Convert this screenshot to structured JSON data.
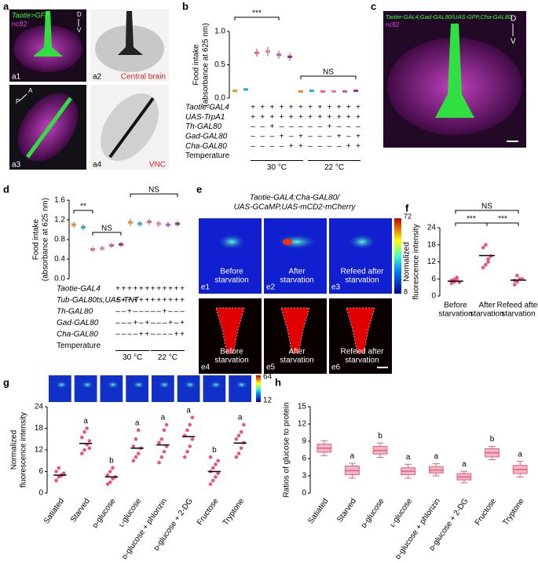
{
  "panel_a": {
    "label": "a",
    "a1": {
      "id": "a1",
      "genotype": "Taotie>GFP",
      "stain": "nc82",
      "dv": [
        "D",
        "V"
      ]
    },
    "a2": {
      "id": "a2",
      "caption": "Central brain"
    },
    "a3": {
      "id": "a3",
      "ap": [
        "A",
        "P"
      ]
    },
    "a4": {
      "id": "a4",
      "caption": "VNC"
    }
  },
  "panel_c": {
    "label": "c",
    "genotype": "Taotie-GAL4;Gad-GAL80/UAS-GFP,Cha-GAL80",
    "stain": "nc82",
    "dv": [
      "D",
      "V"
    ]
  },
  "panel_e": {
    "label": "e",
    "title": [
      "Taotie-GAL4;Cha-GAL80/",
      "UAS-GCaMP,UAS-mCD2-mCherry"
    ],
    "colorbar": [
      72,
      8
    ],
    "images": [
      {
        "id": "e1",
        "caption": [
          "Before",
          "starvation"
        ]
      },
      {
        "id": "e2",
        "caption": [
          "After",
          "starvation"
        ]
      },
      {
        "id": "e3",
        "caption": [
          "Refeed after",
          "starvation"
        ]
      },
      {
        "id": "e4",
        "caption": [
          "Before",
          "starvation"
        ]
      },
      {
        "id": "e5",
        "caption": [
          "After",
          "starvation"
        ]
      },
      {
        "id": "e6",
        "caption": [
          "Refeed after",
          "starvation"
        ]
      }
    ]
  },
  "chart_data": [
    {
      "label": "b",
      "type": "dot",
      "ylabel": [
        "Food intake",
        "(absorbance at 625 nm)"
      ],
      "ylim": [
        0,
        1
      ],
      "yticks": [
        {
          "value": 0,
          "label": "0.0"
        },
        0.5,
        {
          "value": 1,
          "label": "1.0"
        }
      ],
      "values": [
        0.11,
        0.13,
        0.68,
        0.7,
        0.65,
        0.62,
        0.1,
        0.11,
        0.1,
        0.1,
        0.1,
        0.11
      ],
      "errors": [
        0.02,
        0.02,
        0.06,
        0.07,
        0.06,
        0.06,
        0.01,
        0.01,
        0.01,
        0.01,
        0.01,
        0.01
      ],
      "colors": [
        "#f28c28",
        "#2aa6d8",
        "#f2607f",
        "#e87ab8",
        "#c55ac7",
        "#8e2f8e",
        "#f28c28",
        "#2aa6d8",
        "#f2607f",
        "#e87ab8",
        "#c55ac7",
        "#8e2f8e"
      ],
      "annotations": [
        "***",
        "NS"
      ],
      "table": {
        "rows": [
          {
            "name": "Taotie-GAL4",
            "cells": [
              "+",
              "+",
              "+",
              "+",
              "+",
              "+",
              "+",
              "+",
              "+",
              "+",
              "+",
              "+"
            ]
          },
          {
            "name": "UAS-TrpA1",
            "cells": [
              "+",
              "+",
              "+",
              "+",
              "+",
              "+",
              "+",
              "+",
              "+",
              "+",
              "+",
              "+"
            ]
          },
          {
            "name": "Th-GAL80",
            "cells": [
              "–",
              "–",
              "+",
              "–",
              "–",
              "–",
              "–",
              "–",
              "+",
              "–",
              "–",
              "–"
            ]
          },
          {
            "name": "Gad-GAL80",
            "cells": [
              "–",
              "–",
              "–",
              "+",
              "–",
              "+",
              "–",
              "–",
              "–",
              "+",
              "–",
              "+"
            ]
          },
          {
            "name": "Cha-GAL80",
            "cells": [
              "–",
              "–",
              "–",
              "–",
              "+",
              "+",
              "–",
              "–",
              "–",
              "–",
              "+",
              "+"
            ]
          }
        ],
        "temperature": {
          "name": "Temperature",
          "groups": [
            "30 °C",
            "22 °C"
          ]
        }
      }
    },
    {
      "label": "d",
      "type": "dot",
      "ylabel": [
        "Food intake",
        "(absorbance at 625 nm)"
      ],
      "ylim": [
        0,
        1.6
      ],
      "yticks": [
        {
          "value": 0,
          "label": "0.0"
        },
        0.4,
        0.8,
        1.2,
        1.6
      ],
      "values": [
        1.1,
        1.05,
        0.6,
        0.62,
        0.68,
        0.7,
        1.15,
        1.12,
        1.16,
        1.12,
        1.1,
        1.12
      ],
      "errors": [
        0.06,
        0.06,
        0.05,
        0.05,
        0.05,
        0.05,
        0.07,
        0.06,
        0.06,
        0.06,
        0.06,
        0.06
      ],
      "colors": [
        "#f28c28",
        "#2aa6d8",
        "#f2607f",
        "#e87ab8",
        "#c55ac7",
        "#8e2f8e",
        "#f28c28",
        "#2aa6d8",
        "#f2607f",
        "#e87ab8",
        "#c55ac7",
        "#8e2f8e"
      ],
      "annotations": [
        "**",
        "NS",
        "NS"
      ],
      "table": {
        "rows": [
          {
            "name": "Taotie-GAL4",
            "cells": [
              "+",
              "+",
              "+",
              "+",
              "+",
              "+",
              "+",
              "+",
              "+",
              "+",
              "+",
              "+"
            ]
          },
          {
            "name": "Tub-GAL80ts,UAS-TNT",
            "cells": [
              "+",
              "+",
              "+",
              "+",
              "+",
              "+",
              "+",
              "+",
              "+",
              "+",
              "+",
              "+"
            ]
          },
          {
            "name": "Th-GAL80",
            "cells": [
              "–",
              "–",
              "+",
              "–",
              "–",
              "–",
              "–",
              "–",
              "+",
              "–",
              "–",
              "–"
            ]
          },
          {
            "name": "Gad-GAL80",
            "cells": [
              "–",
              "–",
              "–",
              "+",
              "–",
              "+",
              "–",
              "–",
              "–",
              "+",
              "–",
              "+"
            ]
          },
          {
            "name": "Cha-GAL80",
            "cells": [
              "–",
              "–",
              "–",
              "–",
              "+",
              "+",
              "–",
              "–",
              "–",
              "–",
              "+",
              "+"
            ]
          }
        ],
        "temperature": {
          "name": "Temperature",
          "groups": [
            "30 °C",
            "22 °C"
          ]
        }
      }
    },
    {
      "label": "f",
      "type": "dot",
      "ylabel": [
        "Normalized",
        "fluorescence intensity"
      ],
      "ylim": [
        0,
        24
      ],
      "yticks": [
        0,
        6,
        12,
        18,
        24
      ],
      "categories": [
        [
          "Before",
          "starvation"
        ],
        [
          "After",
          "starvation"
        ],
        [
          "Refeed after",
          "starvation"
        ]
      ],
      "values": [
        5.2,
        14.2,
        5.6
      ],
      "color": "#e8557a",
      "points": [
        [
          4.5,
          5,
          6.5,
          4.8,
          5.5,
          5.8,
          6
        ],
        [
          10,
          11,
          12,
          14,
          17,
          18,
          13
        ],
        [
          4,
          5,
          6,
          6,
          5.5,
          7.2
        ]
      ],
      "annotations": [
        "NS",
        "***",
        "***"
      ]
    },
    {
      "label": "g",
      "type": "dot",
      "ylabel": [
        "Normalized",
        "fluorescence intensity"
      ],
      "ylim": [
        0,
        24
      ],
      "yticks": [
        0,
        6,
        12,
        18,
        24
      ],
      "categories": [
        "Satiated",
        "Starved",
        "ᴅ-glucose",
        "ʟ-glucose",
        "ᴅ-glucose + phlorizin",
        "ᴅ-glucose + 2-DG",
        "Fructose",
        "Tryptone"
      ],
      "values": [
        5,
        13.8,
        4.5,
        12.5,
        13.4,
        15.7,
        6,
        13.9
      ],
      "color": "#e8557a",
      "points": [
        [
          3.5,
          4.5,
          5,
          5.5,
          6,
          7,
          4.8
        ],
        [
          11,
          12,
          13.5,
          14.5,
          15.5,
          17,
          18,
          12.5
        ],
        [
          2.5,
          3,
          4,
          4.5,
          5,
          6,
          7
        ],
        [
          9,
          10,
          11,
          12.5,
          13,
          15,
          17.5
        ],
        [
          8.5,
          10,
          11.5,
          13,
          14,
          15,
          17.5,
          19
        ],
        [
          10,
          11.5,
          13,
          15,
          16,
          17.5,
          19,
          21
        ],
        [
          2.5,
          3.5,
          4.5,
          5.5,
          6,
          7,
          8,
          9,
          10
        ],
        [
          10,
          11,
          12.5,
          14,
          15,
          16,
          17,
          19
        ]
      ],
      "letters": [
        null,
        "a",
        "b",
        "a",
        "a",
        "a",
        "b",
        "a"
      ],
      "colorbar": [
        64,
        12
      ]
    },
    {
      "label": "h",
      "type": "box",
      "ylabel": [
        "Ratios of glucose to protein"
      ],
      "ylim": [
        0,
        15
      ],
      "yticks": [
        0,
        3,
        6,
        9,
        12,
        15
      ],
      "categories": [
        "Satiated",
        "Starved",
        "ᴅ-glucose",
        "ʟ-glucose",
        "ᴅ-glucose + phlorizin",
        "ᴅ-glucose + 2-DG",
        "Fructose",
        "Tryptone"
      ],
      "medians": [
        7.8,
        3.9,
        7.4,
        3.8,
        4.0,
        2.8,
        7.0,
        4.1
      ],
      "q1": [
        7.1,
        3.2,
        6.8,
        3.2,
        3.5,
        2.3,
        6.3,
        3.4
      ],
      "q3": [
        8.5,
        4.7,
        8.1,
        4.4,
        4.6,
        3.4,
        7.7,
        4.8
      ],
      "whislo": [
        6.5,
        2.6,
        6.2,
        2.6,
        3.0,
        1.8,
        5.8,
        2.8
      ],
      "whishi": [
        9.1,
        5.2,
        8.7,
        5.0,
        5.1,
        3.8,
        8.1,
        5.5
      ],
      "color": "#f7b6c4",
      "edgecolor": "#e06080",
      "letters": [
        null,
        "a",
        "b",
        "a",
        "a",
        "a",
        "b",
        "a"
      ]
    }
  ]
}
